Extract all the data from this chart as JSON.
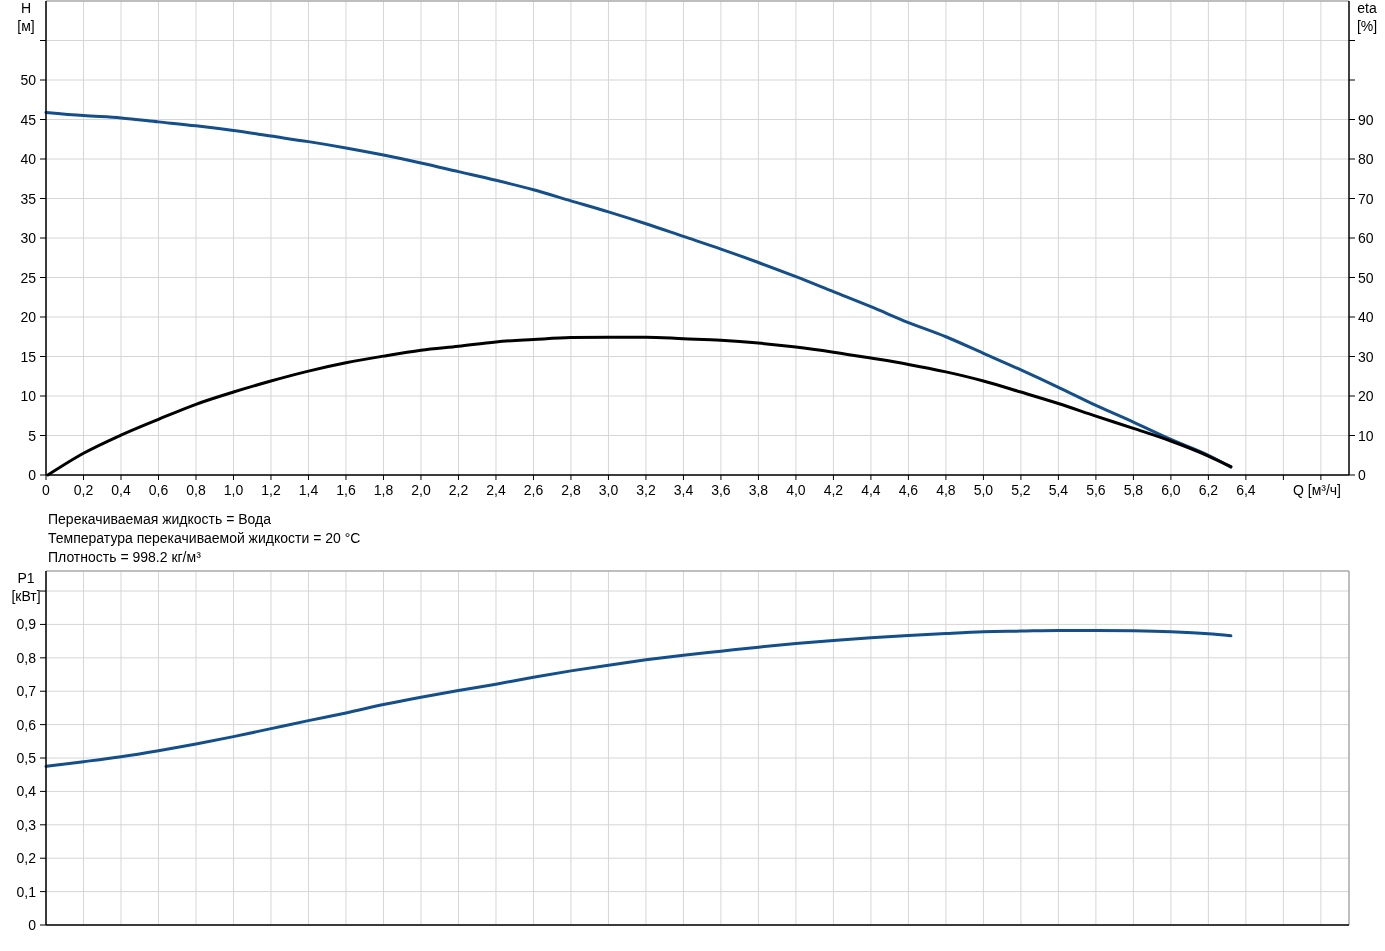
{
  "chart_data": [
    {
      "type": "line",
      "xlabel": "Q [м³/ч]",
      "ylabel": "H [м]",
      "y2label": "eta [%]",
      "annotations": [
        "Перекачиваемая жидкость = Вода",
        "Температура перекачиваемой жидкости = 20 °C",
        "Плотность = 998.2 кг/м³"
      ],
      "xlim": [
        0,
        6.95
      ],
      "xticks": [
        0,
        {
          "value": 0.2,
          "label": "0,2"
        },
        {
          "value": 0.4,
          "label": "0,4"
        },
        {
          "value": 0.6,
          "label": "0,6"
        },
        {
          "value": 0.8,
          "label": "0,8"
        },
        {
          "value": 1,
          "label": "1,0"
        },
        {
          "value": 1.2,
          "label": "1,2"
        },
        {
          "value": 1.4,
          "label": "1,4"
        },
        {
          "value": 1.6,
          "label": "1,6"
        },
        {
          "value": 1.8,
          "label": "1,8"
        },
        {
          "value": 2,
          "label": "2,0"
        },
        {
          "value": 2.2,
          "label": "2,2"
        },
        {
          "value": 2.4,
          "label": "2,4"
        },
        {
          "value": 2.6,
          "label": "2,6"
        },
        {
          "value": 2.8,
          "label": "2,8"
        },
        {
          "value": 3,
          "label": "3,0"
        },
        {
          "value": 3.2,
          "label": "3,2"
        },
        {
          "value": 3.4,
          "label": "3,4"
        },
        {
          "value": 3.6,
          "label": "3,6"
        },
        {
          "value": 3.8,
          "label": "3,8"
        },
        {
          "value": 4,
          "label": "4,0"
        },
        {
          "value": 4.2,
          "label": "4,2"
        },
        {
          "value": 4.4,
          "label": "4,4"
        },
        {
          "value": 4.6,
          "label": "4,6"
        },
        {
          "value": 4.8,
          "label": "4,8"
        },
        {
          "value": 5,
          "label": "5,0"
        },
        {
          "value": 5.2,
          "label": "5,2"
        },
        {
          "value": 5.4,
          "label": "5,4"
        },
        {
          "value": 5.6,
          "label": "5,6"
        },
        {
          "value": 5.8,
          "label": "5,8"
        },
        {
          "value": 6,
          "label": "6,0"
        },
        {
          "value": 6.2,
          "label": "6,2"
        },
        {
          "value": 6.4,
          "label": "6,4"
        },
        {
          "value": 6.6,
          "label": null
        },
        {
          "value": 6.8,
          "label": null
        }
      ],
      "ylim": [
        0,
        60
      ],
      "yticks": [
        0,
        5,
        10,
        15,
        20,
        25,
        30,
        35,
        40,
        45,
        50,
        {
          "value": 55,
          "label": null
        }
      ],
      "y2lim": [
        0,
        120
      ],
      "y2ticks": [
        0,
        10,
        20,
        30,
        40,
        50,
        60,
        70,
        80,
        90,
        {
          "value": 100,
          "label": null
        },
        {
          "value": 110,
          "label": null
        }
      ],
      "grid": true,
      "series": [
        {
          "color": "#134f8a",
          "x": [
            0,
            0.2,
            0.4,
            0.6,
            0.8,
            1,
            1.2,
            1.4,
            1.6,
            1.8,
            2,
            2.2,
            2.4,
            2.6,
            2.8,
            3,
            3.2,
            3.4,
            3.6,
            3.8,
            4,
            4.2,
            4.4,
            4.6,
            4.8,
            5,
            5.2,
            5.4,
            5.6,
            5.8,
            6,
            6.2,
            6.32
          ],
          "values": [
            45.9,
            45.5,
            45.2,
            44.7,
            44.2,
            43.6,
            42.9,
            42.2,
            41.4,
            40.5,
            39.5,
            38.4,
            37.3,
            36.1,
            34.7,
            33.3,
            31.8,
            30.2,
            28.6,
            26.9,
            25.1,
            23.2,
            21.3,
            19.3,
            17.5,
            15.4,
            13.3,
            11.1,
            8.8,
            6.7,
            4.5,
            2.5,
            1.0
          ]
        },
        {
          "color": "#000000",
          "axis": "y2",
          "x": [
            0.01,
            0.2,
            0.4,
            0.6,
            0.8,
            1,
            1.2,
            1.4,
            1.6,
            1.8,
            2,
            2.2,
            2.4,
            2.6,
            2.8,
            3,
            3.2,
            3.4,
            3.6,
            3.8,
            4,
            4.2,
            4.4,
            4.6,
            4.8,
            5,
            5.2,
            5.4,
            5.6,
            5.8,
            6,
            6.2,
            6.32
          ],
          "values": [
            0,
            5.5,
            10.1,
            14.1,
            17.9,
            21.0,
            23.8,
            26.3,
            28.4,
            30.1,
            31.6,
            32.6,
            33.7,
            34.3,
            34.8,
            34.9,
            34.9,
            34.5,
            34.1,
            33.4,
            32.4,
            31.1,
            29.6,
            28.0,
            26.1,
            23.8,
            21.0,
            18.1,
            14.9,
            11.8,
            8.6,
            4.8,
            2.1
          ]
        }
      ]
    },
    {
      "type": "line",
      "ylabel": "P1 [кВт]",
      "xlim": [
        0,
        6.95
      ],
      "xticks": [
        0,
        0.2,
        0.4,
        0.6,
        0.8,
        1,
        1.2,
        1.4,
        1.6,
        1.8,
        2,
        2.2,
        2.4,
        2.6,
        2.8,
        3,
        3.2,
        3.4,
        3.6,
        3.8,
        4,
        4.2,
        4.4,
        4.6,
        4.8,
        5,
        5.2,
        5.4,
        5.6,
        5.8,
        6,
        6.2,
        6.4,
        6.6,
        6.8
      ],
      "ylim": [
        0,
        1.06
      ],
      "yticks": [
        0,
        {
          "value": 0.1,
          "label": "0,1"
        },
        {
          "value": 0.2,
          "label": "0,2"
        },
        {
          "value": 0.3,
          "label": "0,3"
        },
        {
          "value": 0.4,
          "label": "0,4"
        },
        {
          "value": 0.5,
          "label": "0,5"
        },
        {
          "value": 0.6,
          "label": "0,6"
        },
        {
          "value": 0.7,
          "label": "0,7"
        },
        {
          "value": 0.8,
          "label": "0,8"
        },
        {
          "value": 0.9,
          "label": "0,9"
        },
        {
          "value": 1,
          "label": null
        }
      ],
      "grid": true,
      "tick_labels": "y",
      "series": [
        {
          "color": "#134f8a",
          "x": [
            0,
            0.2,
            0.4,
            0.6,
            0.8,
            1,
            1.2,
            1.4,
            1.6,
            1.8,
            2,
            2.2,
            2.4,
            2.6,
            2.8,
            3,
            3.2,
            3.4,
            3.6,
            3.8,
            4,
            4.2,
            4.4,
            4.6,
            4.8,
            5,
            5.2,
            5.4,
            5.6,
            5.8,
            6,
            6.2,
            6.32
          ],
          "values": [
            0.475,
            0.489,
            0.504,
            0.522,
            0.542,
            0.564,
            0.588,
            0.612,
            0.635,
            0.66,
            0.682,
            0.702,
            0.721,
            0.742,
            0.761,
            0.778,
            0.794,
            0.808,
            0.82,
            0.832,
            0.843,
            0.852,
            0.86,
            0.867,
            0.873,
            0.878,
            0.88,
            0.882,
            0.882,
            0.881,
            0.878,
            0.872,
            0.866
          ]
        }
      ]
    }
  ]
}
